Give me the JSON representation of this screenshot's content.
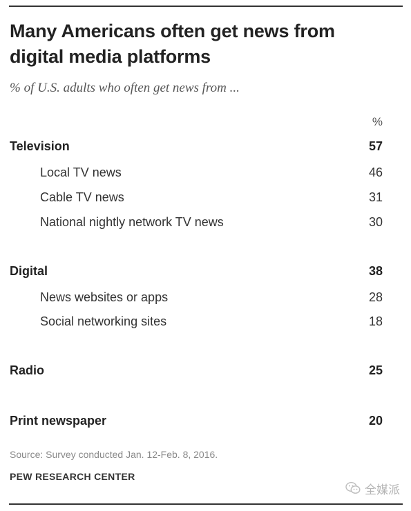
{
  "header": {
    "title_line1": "Many Americans often get news from",
    "title_line2": "digital media platforms",
    "subtitle": "% of U.S. adults who often get news from ..."
  },
  "table": {
    "column_header": "%"
  },
  "chart_data": {
    "type": "table",
    "title": "Many Americans often get news from digital media platforms",
    "subtitle": "% of U.S. adults who often get news from ...",
    "unit": "%",
    "rows": [
      {
        "label": "Television",
        "value": 57,
        "level": "category"
      },
      {
        "label": "Local TV news",
        "value": 46,
        "level": "sub"
      },
      {
        "label": "Cable TV news",
        "value": 31,
        "level": "sub"
      },
      {
        "label": "National nightly network TV news",
        "value": 30,
        "level": "sub"
      },
      {
        "label": "Digital",
        "value": 38,
        "level": "category"
      },
      {
        "label": "News websites or apps",
        "value": 28,
        "level": "sub"
      },
      {
        "label": "Social networking sites",
        "value": 18,
        "level": "sub"
      },
      {
        "label": "Radio",
        "value": 25,
        "level": "category"
      },
      {
        "label": "Print newspaper",
        "value": 20,
        "level": "category"
      }
    ]
  },
  "footer": {
    "source": "Source: Survey conducted Jan. 12-Feb. 8, 2016.",
    "org": "PEW RESEARCH CENTER"
  },
  "watermark": {
    "text": "全媒派",
    "icon": "wechat-icon"
  }
}
